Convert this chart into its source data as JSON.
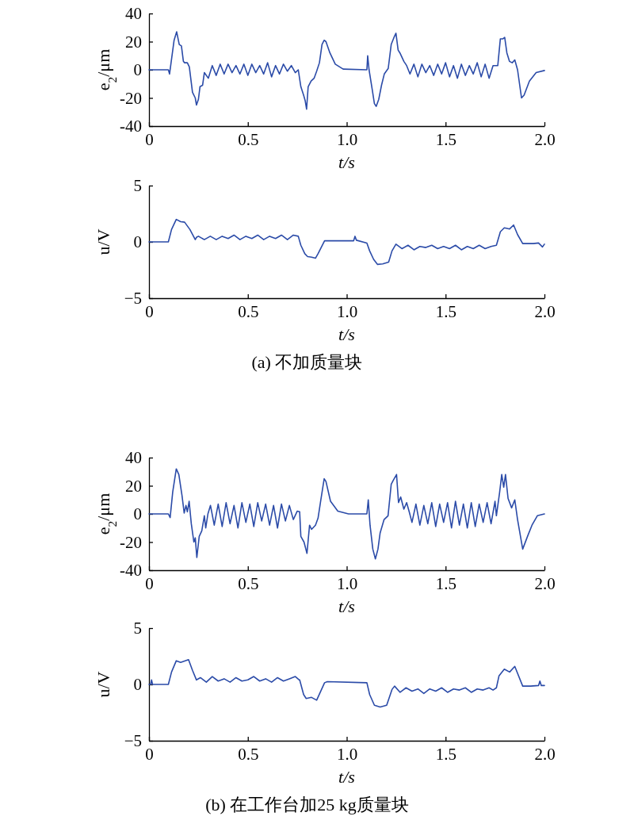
{
  "chart_data": [
    {
      "type": "line",
      "xlabel": "t/s",
      "ylabel": "e$_{2}$/μm",
      "color": "#2b4ba8",
      "xlim": [
        0,
        2
      ],
      "ylim": [
        -40,
        40
      ],
      "xticks": [
        {
          "value": 0,
          "label": "0"
        },
        {
          "value": 0.5,
          "label": "0.5"
        },
        {
          "value": 1,
          "label": "1.0"
        },
        {
          "value": 1.5,
          "label": "1.5"
        },
        {
          "value": 2,
          "label": "2.0"
        }
      ],
      "yticks": [
        {
          "value": -40,
          "label": "-40"
        },
        {
          "value": -20,
          "label": "-20"
        },
        0,
        20,
        40
      ],
      "x": [
        0,
        0.098,
        0.104,
        0.127,
        0.14,
        0.153,
        0.164,
        0.174,
        0.18,
        0.194,
        0.204,
        0.22,
        0.234,
        0.24,
        0.25,
        0.258,
        0.271,
        0.28,
        0.3,
        0.32,
        0.34,
        0.36,
        0.38,
        0.4,
        0.42,
        0.44,
        0.46,
        0.48,
        0.5,
        0.52,
        0.54,
        0.56,
        0.58,
        0.6,
        0.62,
        0.64,
        0.66,
        0.68,
        0.7,
        0.72,
        0.74,
        0.755,
        0.768,
        0.782,
        0.79,
        0.797,
        0.805,
        0.82,
        0.835,
        0.848,
        0.862,
        0.875,
        0.886,
        0.895,
        0.915,
        0.942,
        0.982,
        1.102,
        1.106,
        1.113,
        1.129,
        1.14,
        1.149,
        1.162,
        1.176,
        1.19,
        1.21,
        1.225,
        1.239,
        1.249,
        1.26,
        1.269,
        1.289,
        1.303,
        1.32,
        1.34,
        1.36,
        1.38,
        1.4,
        1.42,
        1.44,
        1.46,
        1.48,
        1.5,
        1.52,
        1.54,
        1.56,
        1.58,
        1.6,
        1.62,
        1.64,
        1.66,
        1.68,
        1.7,
        1.72,
        1.74,
        1.764,
        1.777,
        1.79,
        1.799,
        1.81,
        1.823,
        1.837,
        1.85,
        1.864,
        1.884,
        1.897,
        1.924,
        1.958,
        2
      ],
      "values": [
        0,
        0,
        -3,
        21,
        27,
        18,
        17,
        6,
        5,
        5,
        2,
        -16,
        -20,
        -25,
        -21,
        -12,
        -11,
        -2,
        -6,
        3,
        -4,
        4,
        -3,
        4,
        -2,
        3,
        -3,
        4,
        -4,
        4,
        -2,
        3,
        -3,
        5,
        -5,
        3,
        -3,
        4,
        -1,
        3,
        -2,
        0,
        -12,
        -18,
        -22,
        -28,
        -12,
        -8,
        -6,
        -1,
        5,
        18,
        21,
        20,
        12,
        4,
        0.5,
        0,
        10,
        0,
        -14,
        -24,
        -26,
        -21,
        -11,
        -3,
        1,
        18,
        23,
        26,
        14,
        12,
        6,
        3,
        -3,
        4,
        -5,
        4,
        -2,
        3,
        -4,
        4,
        -3,
        5,
        -5,
        3,
        -6,
        4,
        -4,
        3,
        -3,
        5,
        -5,
        4,
        -6,
        3,
        3,
        22,
        22,
        23,
        12,
        6,
        5,
        7,
        0,
        -20,
        -18,
        -8,
        -2,
        -0.5
      ]
    },
    {
      "type": "line",
      "xlabel": "t/s",
      "ylabel": "u/V",
      "color": "#2b4ba8",
      "xlim": [
        0,
        2
      ],
      "ylim": [
        -5,
        5
      ],
      "xticks": [
        {
          "value": 0,
          "label": "0"
        },
        {
          "value": 0.5,
          "label": "0.5"
        },
        {
          "value": 1,
          "label": "1.0"
        },
        {
          "value": 1.5,
          "label": "1.5"
        },
        {
          "value": 2,
          "label": "2.0"
        }
      ],
      "yticks": [
        {
          "value": -5,
          "label": "−5"
        },
        0,
        5
      ],
      "annotations": [
        "(a) 不加质量块"
      ],
      "x": [
        0,
        0.098,
        0.114,
        0.138,
        0.16,
        0.18,
        0.207,
        0.234,
        0.24,
        0.25,
        0.28,
        0.31,
        0.34,
        0.37,
        0.4,
        0.43,
        0.46,
        0.49,
        0.52,
        0.55,
        0.58,
        0.61,
        0.64,
        0.67,
        0.7,
        0.73,
        0.755,
        0.768,
        0.788,
        0.802,
        0.822,
        0.842,
        0.855,
        0.888,
        0.928,
        1.035,
        1.042,
        1.049,
        1.102,
        1.116,
        1.136,
        1.156,
        1.182,
        1.212,
        1.229,
        1.249,
        1.28,
        1.31,
        1.34,
        1.37,
        1.4,
        1.43,
        1.46,
        1.49,
        1.52,
        1.55,
        1.58,
        1.61,
        1.64,
        1.67,
        1.7,
        1.73,
        1.757,
        1.777,
        1.797,
        1.824,
        1.844,
        1.864,
        1.89,
        1.944,
        1.97,
        1.99,
        2
      ],
      "values": [
        0,
        0,
        1.1,
        2.0,
        1.8,
        1.75,
        1.1,
        0.2,
        0.4,
        0.5,
        0.2,
        0.5,
        0.2,
        0.5,
        0.3,
        0.6,
        0.2,
        0.5,
        0.3,
        0.6,
        0.2,
        0.5,
        0.3,
        0.6,
        0.2,
        0.6,
        0.5,
        -0.3,
        -1.05,
        -1.3,
        -1.35,
        -1.45,
        -1.05,
        0.1,
        0.1,
        0.1,
        0.5,
        0.15,
        -0.1,
        -0.8,
        -1.55,
        -2.0,
        -1.95,
        -1.8,
        -0.8,
        -0.2,
        -0.6,
        -0.3,
        -0.7,
        -0.4,
        -0.5,
        -0.3,
        -0.6,
        -0.4,
        -0.6,
        -0.3,
        -0.7,
        -0.4,
        -0.6,
        -0.3,
        -0.6,
        -0.4,
        -0.3,
        0.9,
        1.25,
        1.15,
        1.5,
        0.65,
        -0.15,
        -0.15,
        -0.1,
        -0.45,
        -0.2
      ]
    },
    {
      "type": "line",
      "xlabel": "t/s",
      "ylabel": "e$_{2}$/μm",
      "color": "#2b4ba8",
      "xlim": [
        0,
        2
      ],
      "ylim": [
        -40,
        40
      ],
      "xticks": [
        {
          "value": 0,
          "label": "0"
        },
        {
          "value": 0.5,
          "label": "0.5"
        },
        {
          "value": 1,
          "label": "1.0"
        },
        {
          "value": 1.5,
          "label": "1.5"
        },
        {
          "value": 2,
          "label": "2.0"
        }
      ],
      "yticks": [
        {
          "value": -40,
          "label": "-40"
        },
        {
          "value": -20,
          "label": "-20"
        },
        0,
        20,
        40
      ],
      "x": [
        0,
        0.098,
        0.107,
        0.12,
        0.138,
        0.151,
        0.167,
        0.178,
        0.187,
        0.194,
        0.203,
        0.214,
        0.227,
        0.234,
        0.242,
        0.254,
        0.267,
        0.28,
        0.287,
        0.298,
        0.311,
        0.33,
        0.35,
        0.37,
        0.39,
        0.41,
        0.43,
        0.45,
        0.47,
        0.49,
        0.51,
        0.53,
        0.55,
        0.57,
        0.59,
        0.61,
        0.63,
        0.65,
        0.67,
        0.69,
        0.71,
        0.73,
        0.75,
        0.762,
        0.768,
        0.784,
        0.799,
        0.812,
        0.822,
        0.842,
        0.855,
        0.868,
        0.886,
        0.895,
        0.918,
        0.955,
        1.009,
        1.102,
        1.109,
        1.118,
        1.132,
        1.145,
        1.158,
        1.169,
        1.189,
        1.209,
        1.225,
        1.236,
        1.252,
        1.262,
        1.273,
        1.289,
        1.303,
        1.316,
        1.33,
        1.35,
        1.37,
        1.39,
        1.41,
        1.43,
        1.45,
        1.47,
        1.49,
        1.51,
        1.53,
        1.55,
        1.57,
        1.59,
        1.61,
        1.63,
        1.65,
        1.67,
        1.69,
        1.71,
        1.73,
        1.75,
        1.757,
        1.773,
        1.784,
        1.794,
        1.803,
        1.816,
        1.834,
        1.85,
        1.864,
        1.89,
        1.917,
        1.937,
        1.964,
        2
      ],
      "values": [
        0,
        0,
        -2.6,
        15.6,
        32,
        28,
        13,
        0.6,
        6,
        1.5,
        9,
        -7,
        -20,
        -17,
        -31,
        -16,
        -12,
        -1.3,
        -10,
        0,
        6,
        -8,
        7,
        -9,
        8,
        -7,
        6,
        -10,
        8,
        -6,
        7,
        -9,
        8,
        -5,
        7,
        -8,
        6,
        -10,
        7,
        -5,
        6,
        -4,
        2,
        1.5,
        -16,
        -20,
        -28,
        -8,
        -11,
        -8,
        -3,
        9,
        25,
        23,
        9,
        2,
        0,
        0,
        10,
        -8,
        -25,
        -32,
        -25,
        -13.5,
        -4,
        -1.3,
        21,
        24,
        28,
        8,
        12,
        3.4,
        8,
        1.5,
        -6,
        7,
        -8,
        6,
        -7,
        8,
        -9,
        7,
        -6,
        8,
        -10,
        9,
        -8,
        7,
        -10,
        8,
        -9,
        7,
        -6,
        8,
        -7,
        9,
        -1.3,
        15,
        28,
        19,
        28,
        11,
        4.3,
        10,
        -4,
        -25,
        -15,
        -8,
        -1.3,
        0
      ]
    },
    {
      "type": "line",
      "xlabel": "t/s",
      "ylabel": "u/V",
      "color": "#2b4ba8",
      "xlim": [
        0,
        2
      ],
      "ylim": [
        -5,
        5
      ],
      "xticks": [
        {
          "value": 0,
          "label": "0"
        },
        {
          "value": 0.5,
          "label": "0.5"
        },
        {
          "value": 1,
          "label": "1.0"
        },
        {
          "value": 1.5,
          "label": "1.5"
        },
        {
          "value": 2,
          "label": "2.0"
        }
      ],
      "yticks": [
        {
          "value": -5,
          "label": "−5"
        },
        0,
        5
      ],
      "annotations": [
        "(b) 在工作台加25 kg质量块"
      ],
      "x": [
        0,
        0.008,
        0.013,
        0.018,
        0.098,
        0.114,
        0.138,
        0.16,
        0.2,
        0.22,
        0.24,
        0.26,
        0.29,
        0.32,
        0.35,
        0.38,
        0.41,
        0.44,
        0.47,
        0.5,
        0.53,
        0.56,
        0.59,
        0.62,
        0.65,
        0.68,
        0.71,
        0.74,
        0.76,
        0.762,
        0.782,
        0.795,
        0.822,
        0.848,
        0.888,
        0.902,
        1.102,
        1.116,
        1.14,
        1.169,
        1.202,
        1.229,
        1.242,
        1.27,
        1.3,
        1.33,
        1.36,
        1.39,
        1.42,
        1.45,
        1.48,
        1.51,
        1.54,
        1.57,
        1.6,
        1.63,
        1.66,
        1.69,
        1.72,
        1.74,
        1.757,
        1.77,
        1.797,
        1.824,
        1.85,
        1.89,
        1.93,
        1.97,
        1.977,
        1.984,
        2
      ],
      "values": [
        0,
        0,
        0.4,
        0,
        0,
        1.1,
        2.1,
        1.95,
        2.2,
        1.25,
        0.4,
        0.6,
        0.2,
        0.7,
        0.3,
        0.5,
        0.2,
        0.6,
        0.3,
        0.4,
        0.7,
        0.3,
        0.5,
        0.2,
        0.6,
        0.3,
        0.5,
        0.7,
        0.4,
        0.4,
        -0.9,
        -1.25,
        -1.15,
        -1.4,
        0.15,
        0.25,
        0.15,
        -0.9,
        -1.85,
        -2.0,
        -1.85,
        -0.45,
        -0.15,
        -0.7,
        -0.3,
        -0.6,
        -0.4,
        -0.8,
        -0.4,
        -0.6,
        -0.3,
        -0.7,
        -0.4,
        -0.5,
        -0.3,
        -0.7,
        -0.4,
        -0.5,
        -0.3,
        -0.5,
        -0.3,
        0.75,
        1.35,
        1.1,
        1.6,
        -0.15,
        -0.15,
        -0.1,
        0.3,
        -0.1,
        -0.1
      ]
    }
  ]
}
